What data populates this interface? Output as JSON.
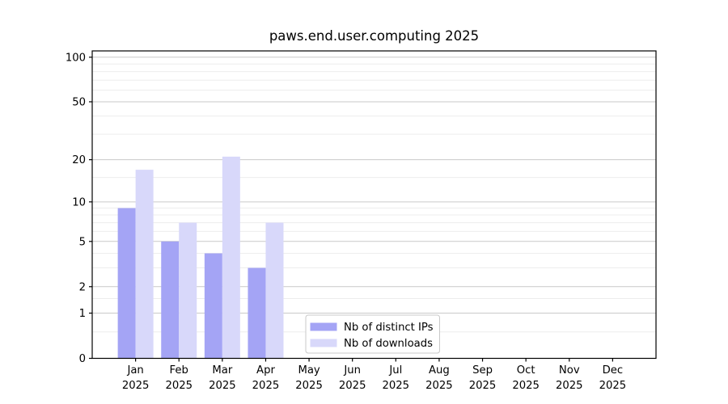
{
  "figure": {
    "title": "paws.end.user.computing 2025",
    "background": "#ffffff"
  },
  "chart_data": {
    "type": "bar",
    "title": "paws.end.user.computing 2025",
    "x": {
      "months": [
        "Jan",
        "Feb",
        "Mar",
        "Apr",
        "May",
        "Jun",
        "Jul",
        "Aug",
        "Sep",
        "Oct",
        "Nov",
        "Dec"
      ],
      "year": "2025"
    },
    "series": [
      {
        "name": "Nb of distinct IPs",
        "color": "#a4a4f5",
        "values": [
          9,
          5,
          4,
          3,
          0,
          0,
          0,
          0,
          0,
          0,
          0,
          0
        ]
      },
      {
        "name": "Nb of downloads",
        "color": "#d8d8fa",
        "values": [
          17,
          7,
          21,
          7,
          0,
          0,
          0,
          0,
          0,
          0,
          0,
          0
        ]
      }
    ],
    "y_axis": {
      "scale": "log1p",
      "ticks": [
        0,
        1,
        2,
        5,
        10,
        20,
        50,
        100
      ],
      "minor_ticks": [
        0.5,
        1.5,
        3,
        4,
        6,
        7,
        8,
        9,
        15,
        30,
        40,
        60,
        70,
        80,
        90
      ],
      "ylim": [
        0,
        110
      ]
    },
    "grid": {
      "major_color": "#c9c9c9",
      "minor_color": "#ededed"
    },
    "legend": {
      "position": "bottom-center",
      "background": "#ffffff",
      "border_color": "#c8c8c8"
    },
    "colors": {
      "spine": "#000000",
      "text": "#000000"
    }
  }
}
